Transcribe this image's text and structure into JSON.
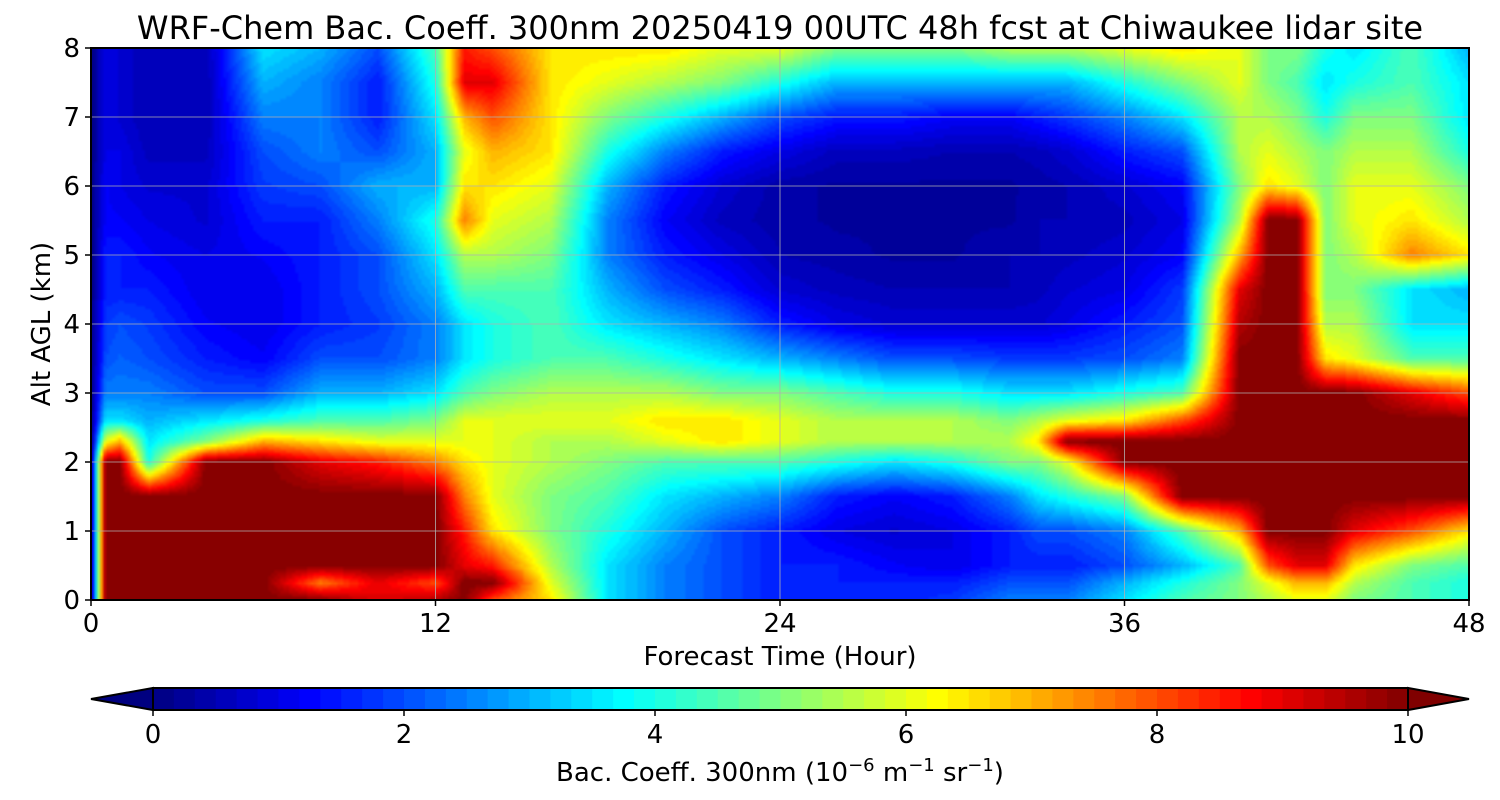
{
  "chart_data": {
    "type": "heatmap",
    "title": "WRF-Chem Bac. Coeff. 300nm  20250419 00UTC 48h fcst at Chiwaukee lidar site",
    "xlabel": "Forecast Time (Hour)",
    "ylabel": "Alt AGL (km)",
    "xlim": [
      0,
      48
    ],
    "ylim": [
      0,
      8
    ],
    "x_ticks": [
      "0",
      "12",
      "24",
      "36",
      "48"
    ],
    "y_ticks": [
      "0",
      "1",
      "2",
      "3",
      "4",
      "5",
      "6",
      "7",
      "8"
    ],
    "grid": true,
    "colormap": "jet",
    "colorbar": {
      "label_main": "Bac. Coeff. 300nm  (10",
      "label_exp1": "−6",
      "label_mid": " m",
      "label_exp2": "−1",
      "label_mid2": " sr",
      "label_exp3": "−1",
      "label_end": ")",
      "range": [
        0,
        10
      ],
      "ticks": [
        "0",
        "2",
        "4",
        "6",
        "8",
        "10"
      ],
      "extend": "both",
      "placement": "bottom"
    },
    "x_hours": [
      0,
      0.5,
      1,
      2,
      4,
      6,
      8,
      10,
      12,
      13,
      14,
      16,
      18,
      20,
      22,
      24,
      26,
      28,
      30,
      32,
      33,
      34,
      36,
      38,
      40,
      41,
      42,
      43,
      44,
      46,
      48
    ],
    "z_km": [
      0,
      0.25,
      0.5,
      1,
      1.5,
      2,
      2.3,
      2.6,
      3,
      3.5,
      4,
      4.5,
      5,
      5.5,
      6,
      6.5,
      7,
      7.5,
      8
    ],
    "values": [
      [
        0.0,
        0.0,
        0.0,
        0.0,
        0.0,
        0.0,
        0.0,
        0.0,
        0.0,
        0.0,
        0.0,
        0.0,
        0.0,
        0.0,
        0.0,
        0.0,
        0.0,
        0.0,
        0.0
      ],
      [
        10.0,
        10.0,
        10.0,
        10.0,
        10.0,
        10.0,
        6.0,
        3.5,
        2.5,
        2.0,
        1.8,
        1.5,
        1.5,
        1.2,
        1.2,
        1.0,
        1.0,
        1.0,
        1.0
      ],
      [
        10.0,
        10.0,
        10.0,
        10.0,
        10.0,
        10.0,
        7.0,
        3.5,
        2.5,
        2.2,
        2.0,
        1.5,
        1.5,
        1.2,
        1.0,
        1.0,
        0.8,
        0.8,
        0.8
      ],
      [
        10.0,
        10.0,
        10.0,
        10.0,
        10.0,
        4.0,
        3.5,
        3.0,
        2.5,
        2.0,
        1.8,
        1.5,
        1.2,
        1.0,
        0.8,
        0.6,
        0.5,
        0.5,
        0.5
      ],
      [
        10.0,
        10.0,
        10.0,
        10.0,
        10.0,
        10.0,
        5.0,
        3.5,
        2.0,
        1.5,
        1.2,
        1.0,
        1.0,
        0.8,
        0.8,
        0.6,
        0.5,
        0.5,
        0.5
      ],
      [
        10.0,
        10.0,
        10.0,
        10.0,
        10.0,
        10.0,
        7.0,
        4.0,
        2.0,
        1.2,
        1.0,
        1.0,
        1.2,
        1.5,
        1.8,
        2.0,
        2.5,
        3.0,
        3.5
      ],
      [
        10.0,
        7.5,
        10.0,
        10.0,
        10.0,
        9.0,
        6.5,
        4.5,
        3.0,
        2.0,
        1.5,
        1.5,
        1.5,
        1.5,
        2.0,
        2.5,
        2.5,
        2.5,
        3.0
      ],
      [
        9.0,
        9.0,
        10.0,
        10.0,
        10.0,
        8.5,
        6.0,
        4.5,
        3.0,
        2.0,
        1.8,
        2.0,
        2.0,
        2.5,
        3.0,
        2.0,
        1.5,
        1.5,
        2.0
      ],
      [
        9.5,
        8.0,
        10.0,
        10.0,
        10.0,
        7.5,
        6.0,
        5.0,
        3.5,
        2.5,
        2.5,
        3.0,
        3.5,
        4.0,
        3.0,
        3.0,
        3.5,
        4.0,
        4.5
      ],
      [
        10.0,
        10.0,
        9.0,
        8.5,
        7.5,
        6.5,
        6.0,
        6.0,
        4.5,
        3.5,
        3.5,
        4.5,
        5.5,
        7.5,
        6.5,
        6.0,
        7.0,
        9.0,
        8.5
      ],
      [
        8.0,
        10.0,
        8.5,
        6.5,
        6.0,
        6.0,
        6.0,
        6.0,
        5.0,
        4.0,
        4.0,
        4.5,
        5.5,
        6.0,
        6.5,
        7.0,
        8.0,
        9.0,
        8.0
      ],
      [
        6.5,
        6.0,
        5.5,
        5.0,
        5.0,
        5.5,
        5.5,
        6.0,
        5.5,
        4.5,
        4.5,
        4.5,
        5.0,
        5.5,
        6.0,
        6.5,
        6.5,
        6.5,
        6.5
      ],
      [
        3.5,
        3.5,
        3.5,
        4.0,
        4.5,
        5.0,
        5.5,
        6.0,
        5.5,
        4.5,
        3.5,
        3.0,
        2.5,
        2.5,
        3.0,
        4.0,
        5.0,
        6.0,
        6.5
      ],
      [
        2.5,
        2.5,
        2.5,
        3.0,
        3.5,
        4.5,
        6.0,
        6.5,
        5.5,
        4.0,
        3.0,
        2.0,
        1.5,
        1.2,
        1.5,
        2.5,
        4.0,
        5.5,
        6.5
      ],
      [
        2.0,
        2.0,
        2.0,
        2.0,
        3.0,
        4.5,
        6.5,
        6.5,
        5.0,
        3.5,
        2.5,
        1.5,
        1.0,
        0.6,
        0.8,
        1.5,
        3.0,
        5.0,
        6.0
      ],
      [
        1.5,
        1.5,
        1.5,
        1.5,
        2.5,
        4.5,
        6.0,
        6.0,
        5.0,
        3.0,
        1.5,
        0.8,
        0.5,
        0.4,
        0.4,
        1.0,
        2.0,
        4.0,
        6.0
      ],
      [
        1.5,
        1.5,
        1.5,
        1.0,
        1.5,
        4.0,
        5.5,
        5.5,
        4.5,
        2.5,
        1.0,
        0.6,
        0.4,
        0.3,
        0.3,
        0.6,
        1.5,
        3.0,
        5.0
      ],
      [
        1.5,
        1.5,
        1.2,
        0.8,
        1.2,
        3.5,
        5.5,
        5.5,
        4.0,
        2.0,
        0.8,
        0.5,
        0.3,
        0.3,
        0.3,
        0.6,
        1.5,
        3.0,
        5.0
      ],
      [
        1.8,
        1.5,
        1.0,
        1.0,
        1.5,
        4.0,
        5.5,
        5.5,
        4.0,
        2.0,
        0.8,
        0.5,
        0.3,
        0.3,
        0.3,
        0.5,
        1.2,
        3.0,
        5.0
      ],
      [
        2.5,
        2.0,
        1.5,
        1.5,
        2.5,
        5.0,
        5.5,
        5.0,
        3.5,
        1.8,
        0.8,
        0.5,
        0.5,
        0.3,
        0.3,
        0.5,
        1.2,
        3.0,
        5.5
      ],
      [
        2.5,
        2.0,
        1.5,
        2.0,
        3.5,
        5.0,
        6.5,
        5.5,
        3.5,
        1.8,
        0.8,
        0.6,
        0.5,
        0.5,
        0.4,
        0.6,
        1.5,
        3.0,
        5.5
      ],
      [
        2.5,
        2.0,
        1.5,
        2.0,
        4.0,
        6.0,
        10.0,
        6.0,
        3.5,
        1.8,
        1.0,
        0.8,
        0.6,
        0.5,
        0.5,
        0.8,
        1.8,
        3.0,
        5.5
      ],
      [
        3.5,
        3.0,
        2.0,
        2.5,
        5.0,
        10.0,
        10.0,
        6.5,
        4.0,
        2.0,
        1.5,
        1.0,
        0.8,
        0.6,
        0.8,
        1.5,
        2.5,
        4.0,
        6.0
      ],
      [
        4.5,
        4.0,
        3.0,
        4.5,
        10.0,
        10.0,
        10.0,
        8.0,
        4.5,
        2.5,
        2.0,
        1.8,
        1.2,
        1.0,
        1.2,
        2.0,
        3.5,
        5.0,
        6.5
      ],
      [
        5.0,
        5.0,
        4.5,
        7.0,
        10.0,
        10.0,
        10.0,
        10.0,
        10.0,
        10.0,
        9.5,
        9.0,
        7.0,
        5.5,
        5.0,
        5.5,
        5.5,
        6.0,
        6.0
      ],
      [
        5.5,
        6.0,
        8.0,
        10.0,
        10.0,
        10.0,
        10.0,
        10.0,
        10.0,
        10.0,
        10.0,
        10.0,
        10.0,
        10.0,
        6.5,
        6.0,
        5.5,
        5.0,
        5.0
      ],
      [
        6.0,
        7.0,
        9.0,
        10.0,
        10.0,
        10.0,
        10.0,
        10.0,
        10.0,
        10.0,
        10.0,
        10.0,
        10.0,
        10.0,
        6.0,
        5.5,
        5.0,
        4.5,
        5.0
      ],
      [
        6.0,
        7.0,
        9.0,
        10.0,
        10.0,
        10.0,
        10.0,
        10.0,
        10.0,
        6.5,
        5.5,
        5.0,
        5.0,
        5.0,
        5.0,
        5.0,
        4.0,
        3.5,
        4.0
      ],
      [
        5.0,
        5.5,
        6.5,
        9.0,
        10.0,
        10.0,
        10.0,
        10.0,
        10.0,
        6.0,
        5.5,
        5.0,
        5.5,
        6.0,
        6.0,
        5.5,
        5.0,
        4.0,
        3.5
      ],
      [
        4.5,
        4.5,
        5.0,
        8.0,
        10.0,
        10.0,
        10.0,
        10.0,
        9.0,
        4.5,
        3.5,
        3.5,
        7.5,
        6.5,
        6.0,
        5.5,
        5.0,
        4.5,
        4.5
      ],
      [
        4.0,
        4.0,
        4.5,
        6.5,
        10.0,
        10.0,
        10.0,
        10.0,
        8.0,
        4.5,
        3.5,
        3.0,
        6.5,
        5.5,
        5.0,
        4.0,
        3.5,
        3.5,
        3.0
      ]
    ]
  }
}
